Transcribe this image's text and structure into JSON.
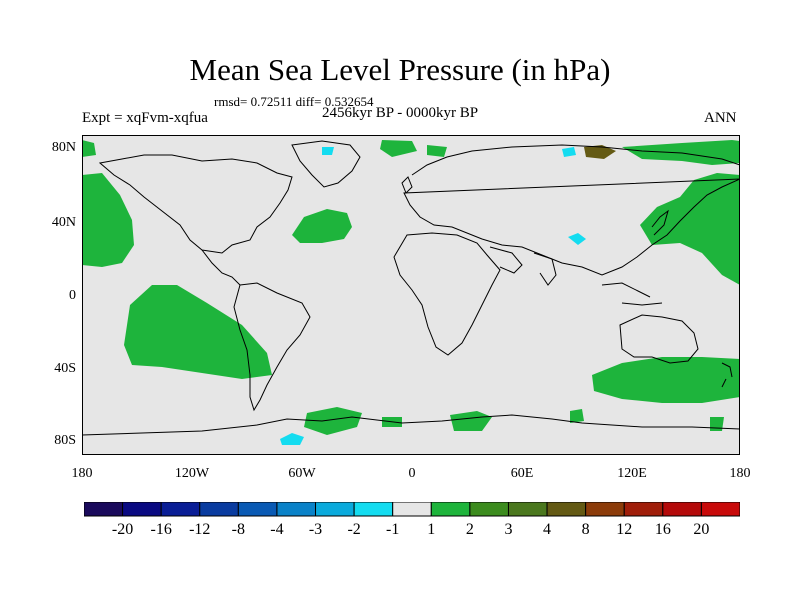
{
  "title": "Mean Sea Level Pressure (in hPa)",
  "stats": "rmsd= 0.72511 diff= 0.532654",
  "experiment": "Expt = xqFvm-xqfua",
  "period": "2456kyr BP - 0000kyr BP",
  "season": "ANN",
  "map": {
    "lat_ticks": [
      "80N",
      "40N",
      "0",
      "40S",
      "80S"
    ],
    "lon_ticks": [
      "180",
      "120W",
      "60W",
      "0",
      "60E",
      "120E",
      "180"
    ],
    "background_color": "#e6e6e6",
    "coastline_color": "#000000"
  },
  "colorbar": {
    "colors": [
      "#1a0a5c",
      "#0a0a82",
      "#0a1e96",
      "#0a3ca0",
      "#0a5ab4",
      "#0a82c8",
      "#0aaadc",
      "#14dcf0",
      "#e6e6e6",
      "#1eb43c",
      "#3c8c1e",
      "#4b781e",
      "#645a14",
      "#8c3c0a",
      "#a01e0a",
      "#b40a0a",
      "#c80a0a"
    ],
    "labels": [
      "-20",
      "-16",
      "-12",
      "-8",
      "-4",
      "-3",
      "-2",
      "-1",
      "1",
      "2",
      "3",
      "4",
      "8",
      "12",
      "16",
      "20"
    ]
  }
}
